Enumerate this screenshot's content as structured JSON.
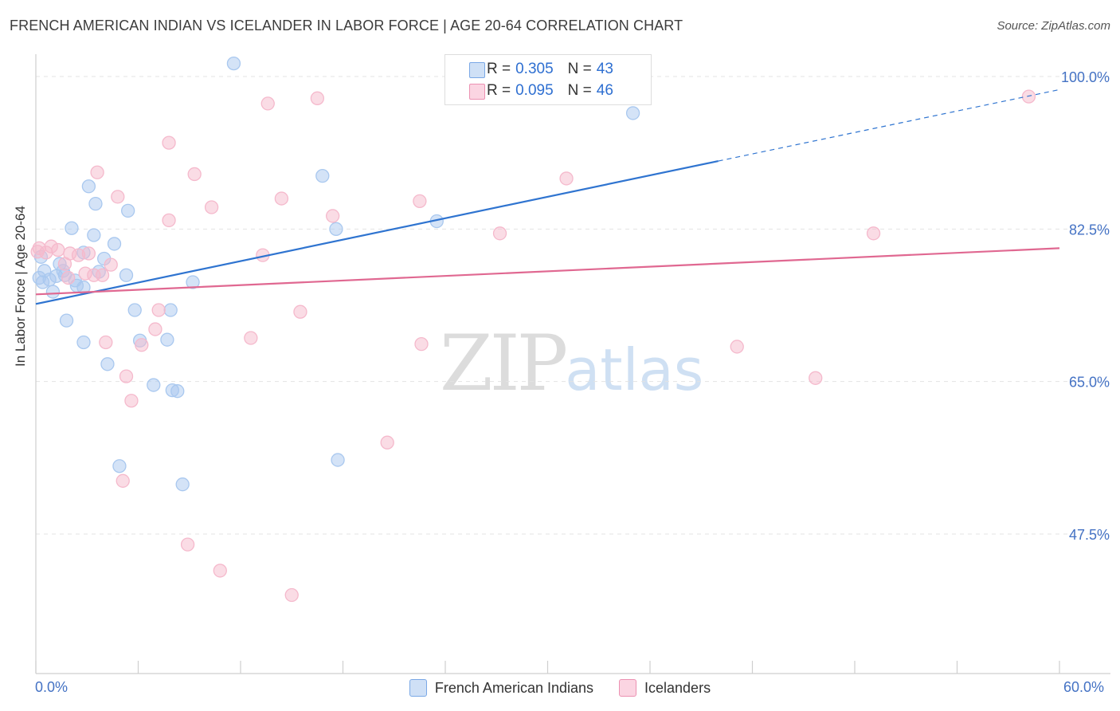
{
  "title": "FRENCH AMERICAN INDIAN VS ICELANDER IN LABOR FORCE | AGE 20-64 CORRELATION CHART",
  "source": "Source: ZipAtlas.com",
  "watermark": {
    "zip": "ZIP",
    "atlas": "atlas"
  },
  "legend": {
    "r_label": "R =",
    "n_label": "N =",
    "rows": [
      {
        "r": "0.305",
        "n": "43",
        "color": "#a9c8ef"
      },
      {
        "r": "0.095",
        "n": "46",
        "color": "#f5b9cc"
      }
    ]
  },
  "chart_data": {
    "type": "scatter",
    "title": "FRENCH AMERICAN INDIAN VS ICELANDER IN LABOR FORCE | AGE 20-64 CORRELATION CHART",
    "xlabel": "",
    "ylabel": "In Labor Force | Age 20-64",
    "xlim": [
      0,
      60
    ],
    "ylim": [
      30,
      102
    ],
    "x_tick_labels": [
      "0.0%",
      "60.0%"
    ],
    "y_ticks": [
      47.5,
      65.0,
      82.5,
      100.0
    ],
    "y_tick_labels": [
      "47.5%",
      "65.0%",
      "82.5%",
      "100.0%"
    ],
    "series": [
      {
        "name": "French American Indians",
        "color": "#4d8fe0",
        "fill": "#a9c8ef",
        "trend": {
          "x0": 0.0,
          "y0": 73.9,
          "x1": 40.0,
          "y1": 90.3,
          "dash_to_x": 60.0,
          "dash_to_y": 98.5
        },
        "points": [
          [
            11.6,
            101.5
          ],
          [
            35.4,
            101.5
          ],
          [
            35.0,
            95.8
          ],
          [
            3.1,
            87.4
          ],
          [
            16.8,
            88.6
          ],
          [
            3.5,
            85.4
          ],
          [
            5.4,
            84.6
          ],
          [
            2.1,
            82.6
          ],
          [
            3.4,
            81.8
          ],
          [
            4.6,
            80.8
          ],
          [
            0.3,
            79.3
          ],
          [
            2.8,
            79.8
          ],
          [
            4.0,
            79.1
          ],
          [
            1.4,
            78.5
          ],
          [
            0.5,
            77.7
          ],
          [
            0.2,
            76.9
          ],
          [
            0.8,
            76.7
          ],
          [
            1.2,
            77.1
          ],
          [
            1.7,
            77.2
          ],
          [
            2.3,
            76.6
          ],
          [
            0.4,
            76.4
          ],
          [
            1.6,
            77.7
          ],
          [
            3.7,
            77.6
          ],
          [
            5.3,
            77.2
          ],
          [
            9.2,
            76.4
          ],
          [
            2.4,
            76.0
          ],
          [
            2.8,
            75.8
          ],
          [
            1.0,
            75.3
          ],
          [
            5.8,
            73.2
          ],
          [
            7.9,
            73.2
          ],
          [
            1.8,
            72.0
          ],
          [
            2.8,
            69.5
          ],
          [
            6.1,
            69.7
          ],
          [
            7.7,
            69.8
          ],
          [
            4.2,
            67.0
          ],
          [
            6.9,
            64.6
          ],
          [
            8.0,
            64.0
          ],
          [
            8.3,
            63.9
          ],
          [
            23.5,
            83.4
          ],
          [
            17.6,
            82.5
          ],
          [
            4.9,
            55.3
          ],
          [
            8.6,
            53.2
          ],
          [
            17.7,
            56.0
          ]
        ]
      },
      {
        "name": "Icelanders",
        "color": "#e06891",
        "fill": "#f5b9cc",
        "trend": {
          "x0": 0.0,
          "y0": 75.0,
          "x1": 60.0,
          "y1": 80.3
        },
        "points": [
          [
            0.2,
            80.3
          ],
          [
            0.6,
            79.8
          ],
          [
            0.9,
            80.5
          ],
          [
            1.3,
            80.1
          ],
          [
            1.7,
            78.5
          ],
          [
            2.0,
            79.7
          ],
          [
            2.5,
            79.5
          ],
          [
            3.1,
            79.7
          ],
          [
            2.9,
            77.4
          ],
          [
            3.4,
            77.2
          ],
          [
            3.9,
            77.2
          ],
          [
            4.4,
            78.4
          ],
          [
            3.6,
            89.0
          ],
          [
            4.8,
            86.2
          ],
          [
            7.8,
            92.4
          ],
          [
            9.3,
            88.8
          ],
          [
            10.3,
            85.0
          ],
          [
            7.8,
            83.5
          ],
          [
            13.6,
            96.9
          ],
          [
            16.5,
            97.5
          ],
          [
            14.4,
            86.0
          ],
          [
            13.3,
            79.5
          ],
          [
            15.5,
            73.0
          ],
          [
            12.6,
            70.0
          ],
          [
            7.2,
            73.2
          ],
          [
            7.0,
            71.0
          ],
          [
            6.2,
            69.2
          ],
          [
            4.1,
            69.5
          ],
          [
            5.3,
            65.6
          ],
          [
            5.6,
            62.8
          ],
          [
            5.1,
            53.6
          ],
          [
            8.9,
            46.3
          ],
          [
            10.8,
            43.3
          ],
          [
            15.0,
            40.5
          ],
          [
            20.6,
            58.0
          ],
          [
            22.6,
            69.3
          ],
          [
            22.5,
            85.7
          ],
          [
            17.4,
            84.0
          ],
          [
            27.2,
            82.0
          ],
          [
            31.1,
            88.3
          ],
          [
            41.1,
            69.0
          ],
          [
            45.7,
            65.4
          ],
          [
            49.1,
            82.0
          ],
          [
            58.2,
            97.7
          ],
          [
            0.1,
            79.9
          ],
          [
            1.9,
            76.9
          ]
        ]
      }
    ]
  }
}
